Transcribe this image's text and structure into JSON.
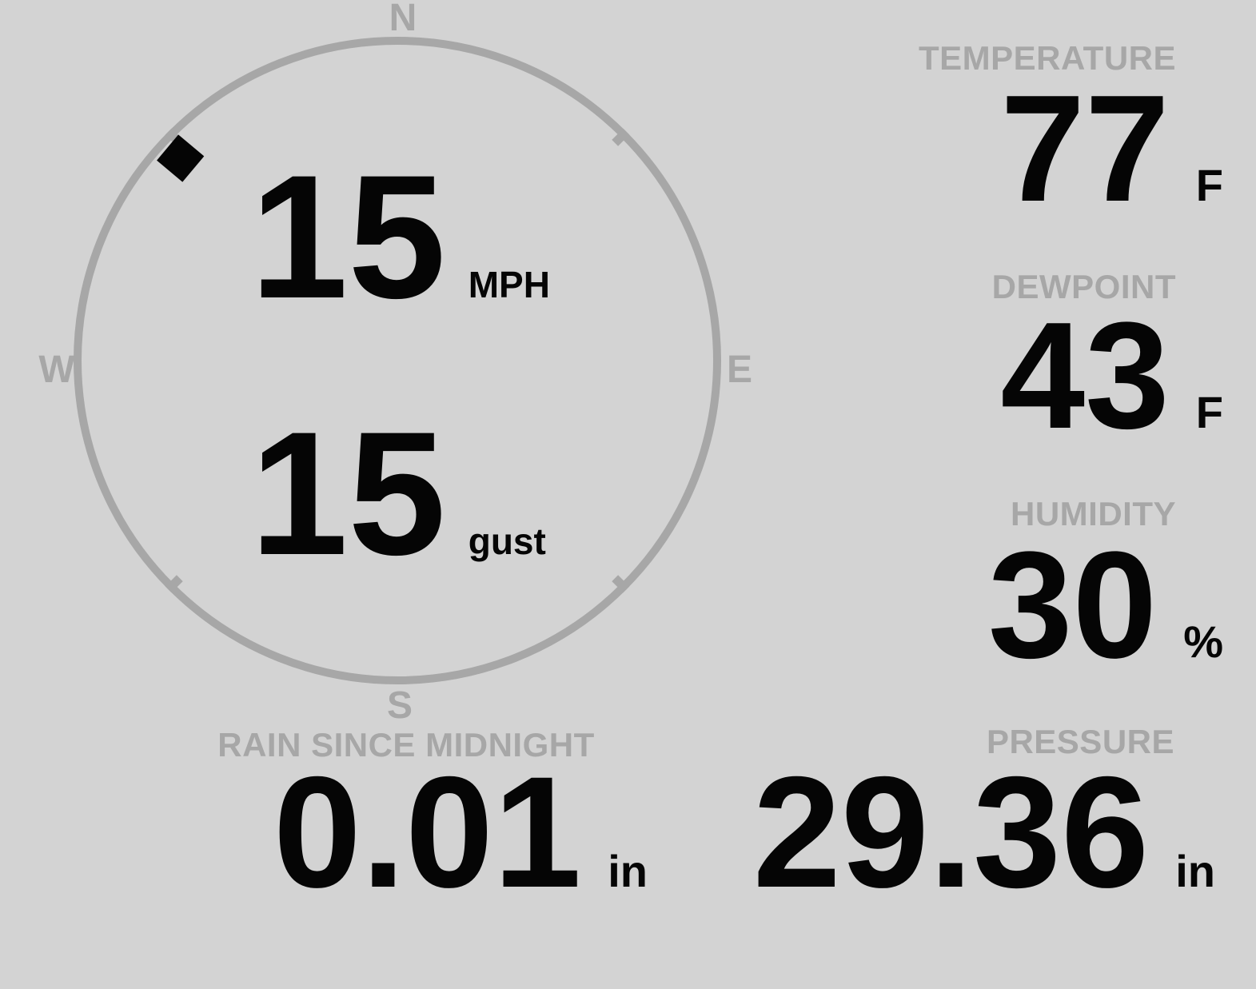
{
  "theme": {
    "background": "#d3d3d3",
    "muted": "#a7a7a7",
    "text": "#050505"
  },
  "wind": {
    "direction_deg": 313,
    "compass_labels": {
      "north": "N",
      "east": "E",
      "south": "S",
      "west": "W"
    },
    "speed": {
      "value": "15",
      "unit": "MPH"
    },
    "gust": {
      "value": "15",
      "unit": "gust"
    }
  },
  "metrics": {
    "temperature": {
      "label": "TEMPERATURE",
      "value": "77",
      "unit": "F"
    },
    "dewpoint": {
      "label": "DEWPOINT",
      "value": "43",
      "unit": "F"
    },
    "humidity": {
      "label": "HUMIDITY",
      "value": "30",
      "unit": "%"
    },
    "rain_since_midnight": {
      "label": "RAIN SINCE MIDNIGHT",
      "value": "0.01",
      "unit": "in"
    },
    "pressure": {
      "label": "PRESSURE",
      "value": "29.36",
      "unit": "in"
    }
  }
}
